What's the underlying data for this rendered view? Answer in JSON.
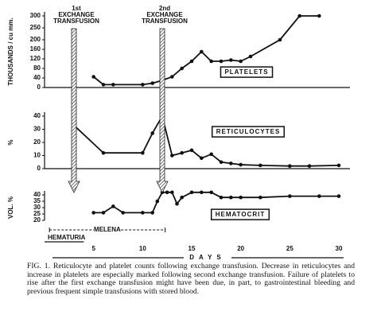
{
  "chart_data": [
    {
      "type": "line",
      "y_label": "THOUSANDS / cu mm.",
      "xlim": [
        0,
        30
      ],
      "ylim": [
        0,
        300
      ],
      "yticks": [
        0,
        40,
        80,
        120,
        160,
        200,
        250,
        300
      ],
      "series": [
        {
          "name": "PLATELETS",
          "color": "#111111",
          "x": [
            5,
            6,
            7,
            10,
            11,
            12,
            13,
            14,
            15,
            16,
            17,
            18,
            19,
            20,
            21,
            24,
            26,
            28
          ],
          "values": [
            45,
            12,
            12,
            12,
            18,
            30,
            45,
            80,
            110,
            150,
            110,
            110,
            115,
            110,
            130,
            200,
            300,
            300
          ]
        }
      ]
    },
    {
      "type": "line",
      "y_label": "%",
      "xlim": [
        0,
        30
      ],
      "ylim": [
        0,
        40
      ],
      "yticks": [
        0,
        10,
        20,
        30,
        40
      ],
      "series": [
        {
          "name": "RETICULOCYTES",
          "color": "#111111",
          "x": [
            3,
            6,
            10,
            11,
            12,
            13,
            14,
            15,
            16,
            17,
            18,
            19,
            20,
            22,
            25,
            27,
            30
          ],
          "values": [
            33,
            12,
            12,
            27,
            40,
            10,
            12,
            14,
            8,
            11,
            5,
            4,
            3,
            2.5,
            2,
            2,
            2.5
          ]
        }
      ]
    },
    {
      "type": "line",
      "y_label": "VOL. %",
      "x_label": "DAYS",
      "xlim": [
        0,
        30
      ],
      "xticks": [
        5,
        10,
        15,
        20,
        25,
        30
      ],
      "ylim": [
        20,
        40
      ],
      "yticks": [
        20,
        25,
        30,
        35,
        40
      ],
      "series": [
        {
          "name": "HEMATOCRIT",
          "color": "#111111",
          "x": [
            5,
            6,
            7,
            8,
            10,
            11,
            11.5,
            12,
            12.5,
            13,
            13.5,
            14,
            15,
            16,
            17,
            18,
            19,
            20,
            22,
            25,
            28,
            30
          ],
          "values": [
            26,
            26,
            31,
            26,
            26,
            26,
            35,
            42,
            42,
            42,
            33,
            38,
            42,
            42,
            42,
            38,
            38,
            38,
            38,
            39,
            39,
            39
          ]
        }
      ]
    }
  ],
  "annotations": {
    "transfusions": [
      {
        "day": 3,
        "label": [
          "1st",
          "EXCHANGE",
          "TRANSFUSION"
        ]
      },
      {
        "day": 12,
        "label": [
          "2nd",
          "EXCHANGE",
          "TRANSFUSION"
        ]
      }
    ],
    "periods": [
      {
        "label": "MELENA",
        "days": [
          0.5,
          12.3
        ]
      },
      {
        "label": "HEMATURIA",
        "days": [
          0,
          4
        ]
      }
    ]
  },
  "caption": {
    "figure": "FIG. 1.",
    "text": "Reticulocyte and platelet counts following exchange transfusion. Decrease in reticulocytes and increase in platelets are especially marked following second exchange transfusion. Failure of platelets to rise after the first exchange transfusion might have been due, in part, to gastrointestinal bleeding and previous frequent simple transfusions with stored blood."
  }
}
